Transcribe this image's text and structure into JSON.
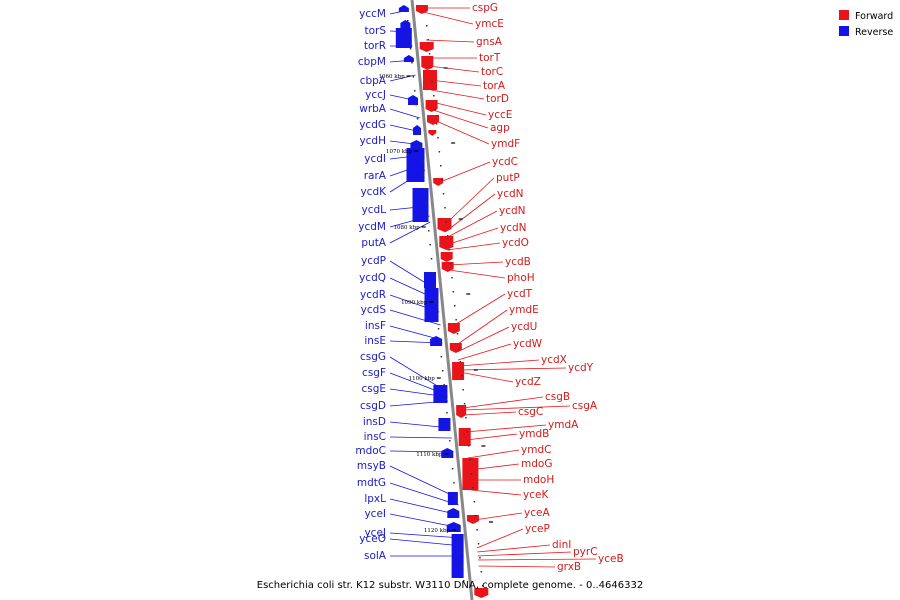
{
  "caption": "Escherichia coli str. K12 substr. W3110 DNA, complete genome. - 0..4646332",
  "legend": [
    {
      "label": "Forward",
      "color": "#e8141a"
    },
    {
      "label": "Reverse",
      "color": "#1414e6"
    }
  ],
  "colors": {
    "forward": "#e8141a",
    "reverse": "#1414e6",
    "axis": "#888888"
  },
  "ticks": [
    "1060 kbp",
    "1070 kbp",
    "1080 kbp",
    "1090 kbp",
    "1100 kbp",
    "1110 kbp",
    "1120 kbp"
  ],
  "reverse_genes": [
    "yccM",
    "torS",
    "torR",
    "cbpM",
    "cbpA",
    "yccJ",
    "wrbA",
    "ycdG",
    "ycdH",
    "ycdI",
    "rarA",
    "ycdK",
    "ycdL",
    "ycdM",
    "putA",
    "ycdP",
    "ycdQ",
    "ycdR",
    "ycdS",
    "insF",
    "insE",
    "csgG",
    "csgF",
    "csgE",
    "csgD",
    "insD",
    "insC",
    "mdoC",
    "msyB",
    "mdtG",
    "lpxL",
    "yceI",
    "yceJ",
    "yceO",
    "solA"
  ],
  "forward_genes": [
    "cspG",
    "ymcE",
    "gnsA",
    "torT",
    "torC",
    "torA",
    "torD",
    "yccE",
    "agp",
    "ymdF",
    "ycdC",
    "putP",
    "ycdN",
    "ycdN",
    "ycdN",
    "ycdO",
    "ycdB",
    "phoH",
    "ycdT",
    "ymdE",
    "ycdU",
    "ycdW",
    "ycdX",
    "ycdY",
    "ycdZ",
    "csgB",
    "csgA",
    "csgC",
    "ymdA",
    "ymdB",
    "ymdC",
    "mdoG",
    "mdoH",
    "yceK",
    "yceA",
    "yceP",
    "dinI",
    "pyrC",
    "yceB",
    "grxB"
  ]
}
